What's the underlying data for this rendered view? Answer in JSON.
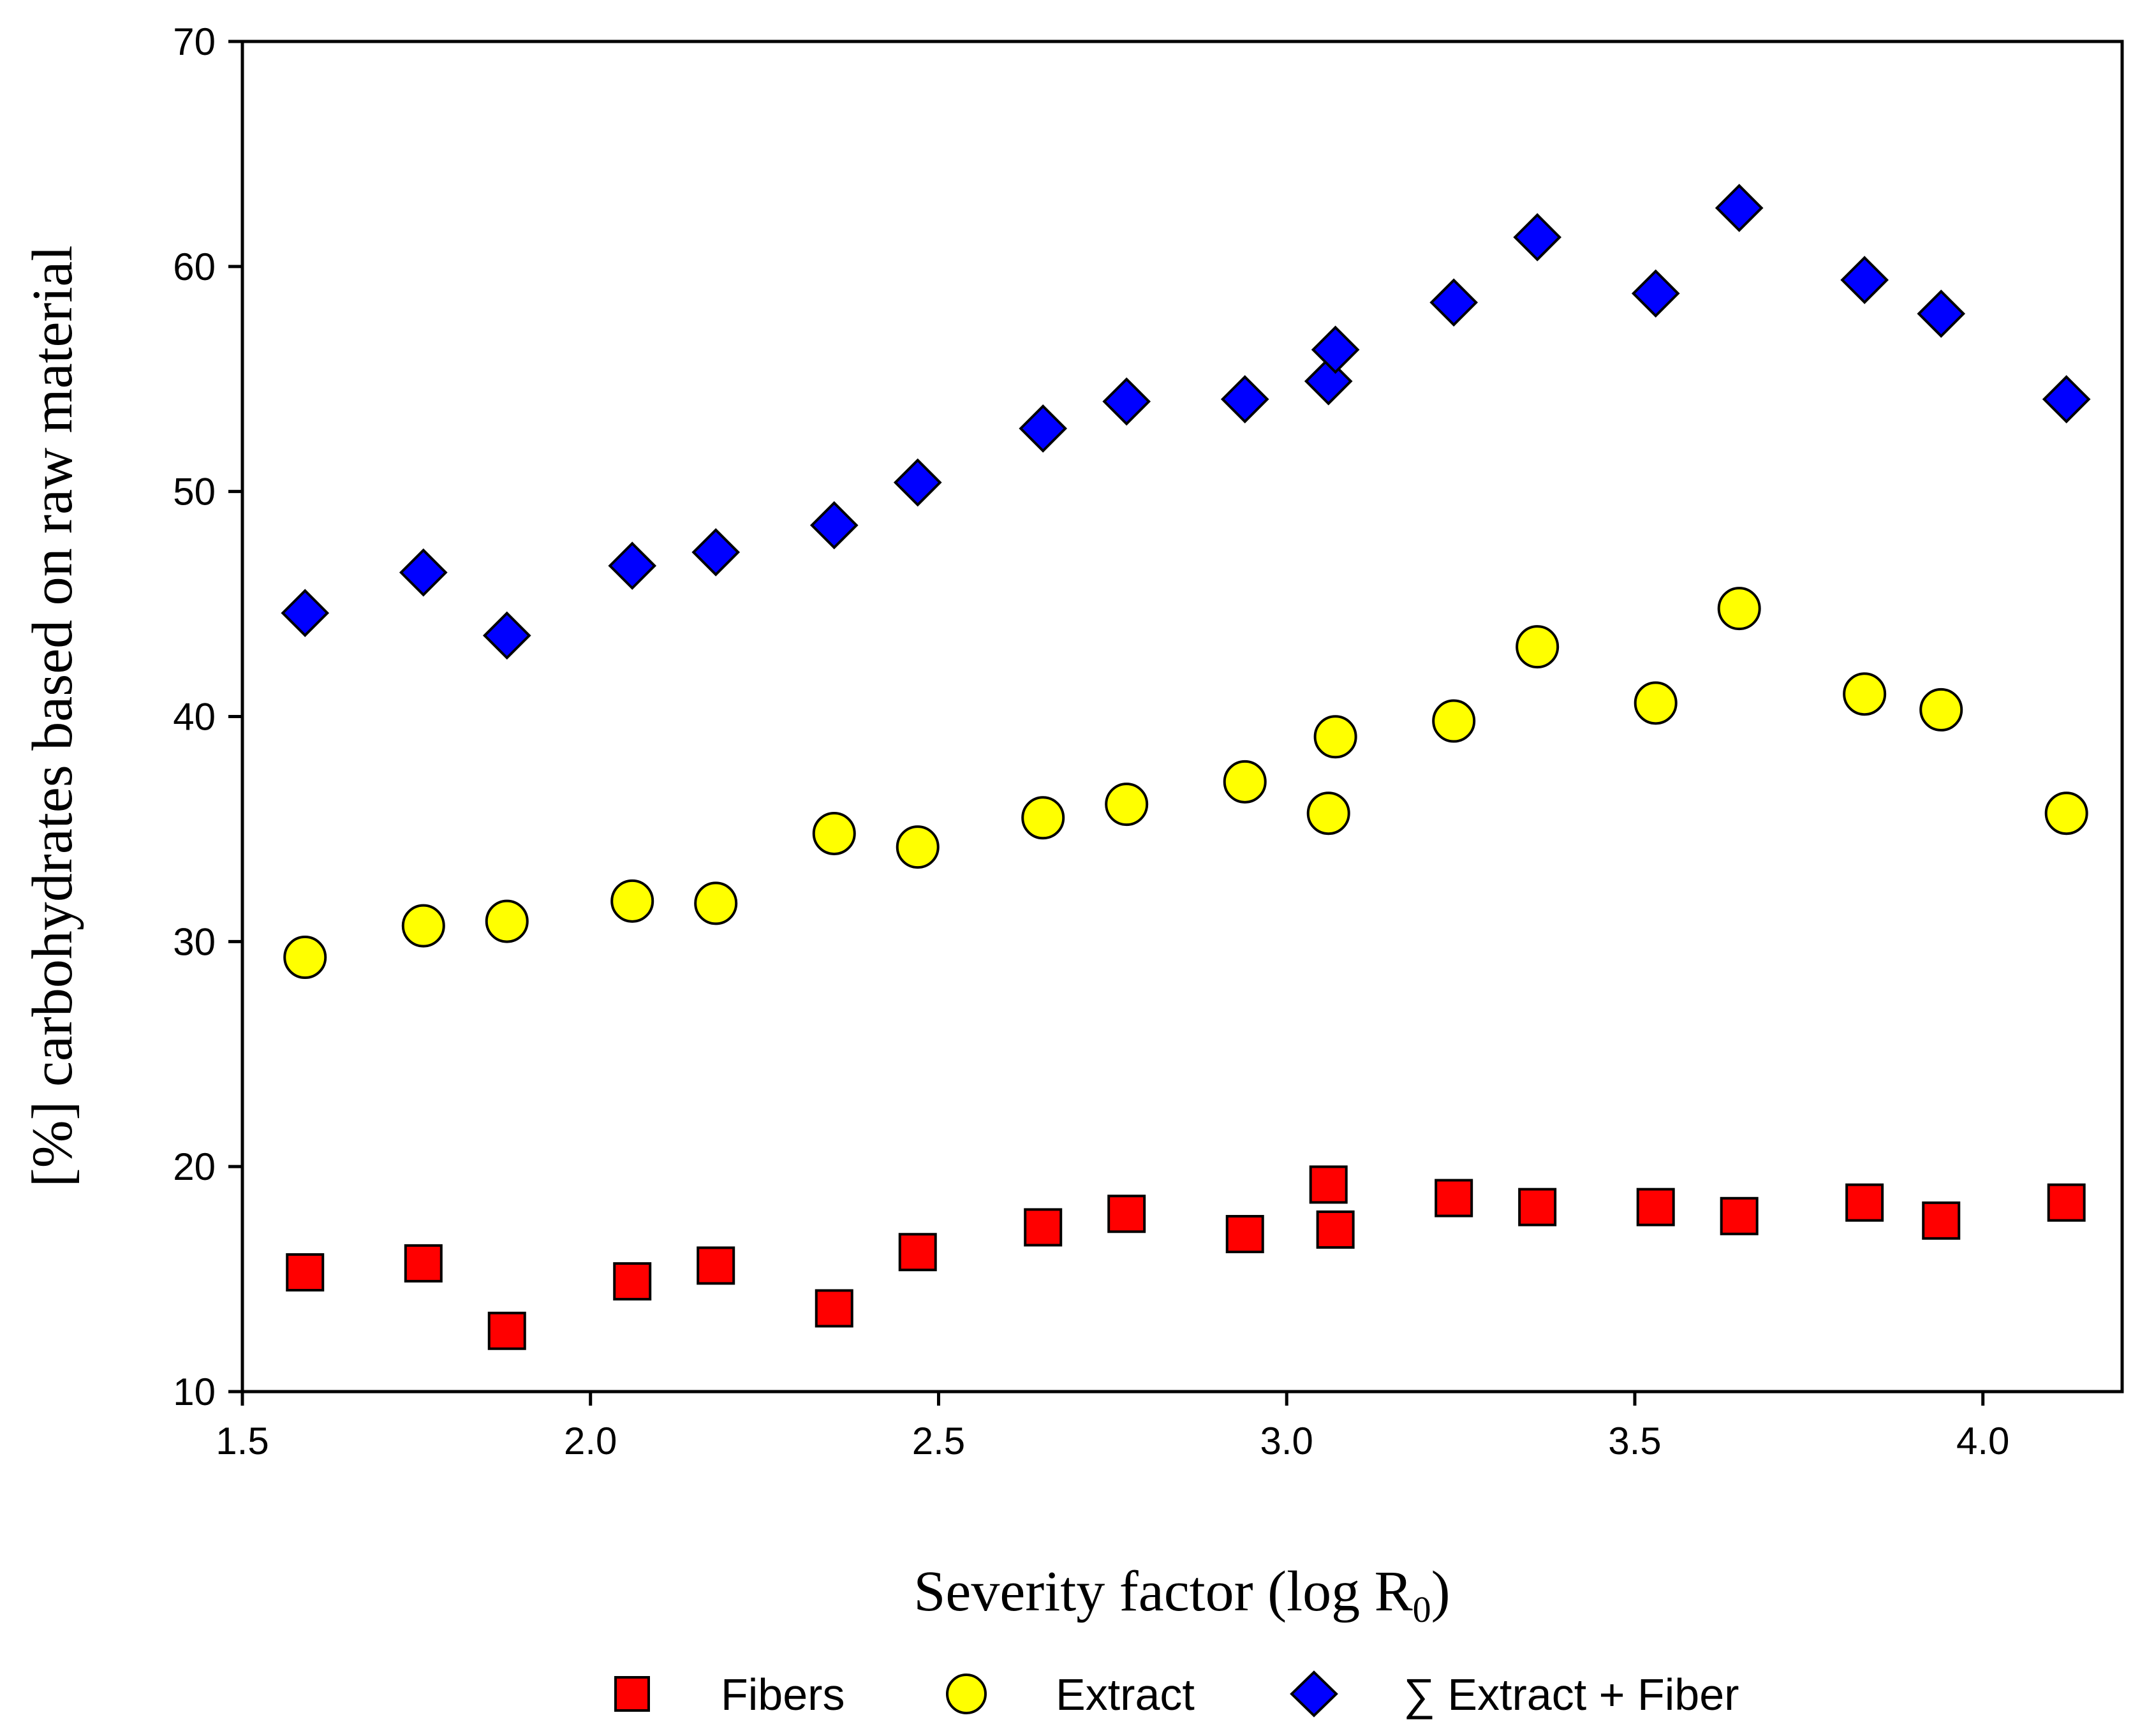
{
  "chart_data": {
    "type": "scatter",
    "title": "",
    "xlabel": "Severity factor (log R",
    "xlabel_subscript": "0",
    "xlabel_suffix": ")",
    "ylabel": "[%] carbohydrates based on raw material",
    "xlim": [
      1.5,
      4.2
    ],
    "ylim": [
      10,
      70
    ],
    "xticks": [
      "1.5",
      "2.0",
      "2.5",
      "3.0",
      "3.5",
      "4.0"
    ],
    "yticks": [
      "10",
      "20",
      "30",
      "40",
      "50",
      "60",
      "70"
    ],
    "grid": false,
    "legend_position": "bottom",
    "series": [
      {
        "name": "Fibers",
        "marker": "square",
        "color": "#ff0000",
        "x": [
          1.59,
          1.76,
          1.88,
          2.06,
          2.18,
          2.35,
          2.47,
          2.65,
          2.77,
          2.94,
          3.06,
          3.07,
          3.24,
          3.36,
          3.53,
          3.65,
          3.83,
          3.94,
          4.12
        ],
        "y": [
          15.3,
          15.7,
          12.7,
          14.9,
          15.6,
          13.7,
          16.2,
          17.3,
          17.9,
          17.0,
          19.2,
          17.2,
          18.6,
          18.2,
          18.2,
          17.8,
          18.4,
          17.6,
          18.4
        ]
      },
      {
        "name": "Extract",
        "marker": "circle",
        "color": "#ffff00",
        "x": [
          1.59,
          1.76,
          1.88,
          2.06,
          2.18,
          2.35,
          2.47,
          2.65,
          2.77,
          2.94,
          3.06,
          3.07,
          3.24,
          3.36,
          3.53,
          3.65,
          3.83,
          3.94,
          4.12
        ],
        "y": [
          29.3,
          30.7,
          30.9,
          31.8,
          31.7,
          34.8,
          34.2,
          35.5,
          36.1,
          37.1,
          35.7,
          39.1,
          39.8,
          43.1,
          40.6,
          44.8,
          41.0,
          40.3,
          35.7
        ]
      },
      {
        "name": "∑ Extract + Fiber",
        "marker": "diamond",
        "color": "#0000ff",
        "x": [
          1.59,
          1.76,
          1.88,
          2.06,
          2.18,
          2.35,
          2.47,
          2.65,
          2.77,
          2.94,
          3.06,
          3.07,
          3.24,
          3.36,
          3.53,
          3.65,
          3.83,
          3.94,
          4.12
        ],
        "y": [
          44.6,
          46.4,
          43.6,
          46.7,
          47.3,
          48.5,
          50.4,
          52.8,
          54.0,
          54.1,
          54.9,
          56.3,
          58.4,
          61.3,
          58.8,
          62.6,
          59.4,
          57.9,
          54.1
        ]
      }
    ]
  }
}
